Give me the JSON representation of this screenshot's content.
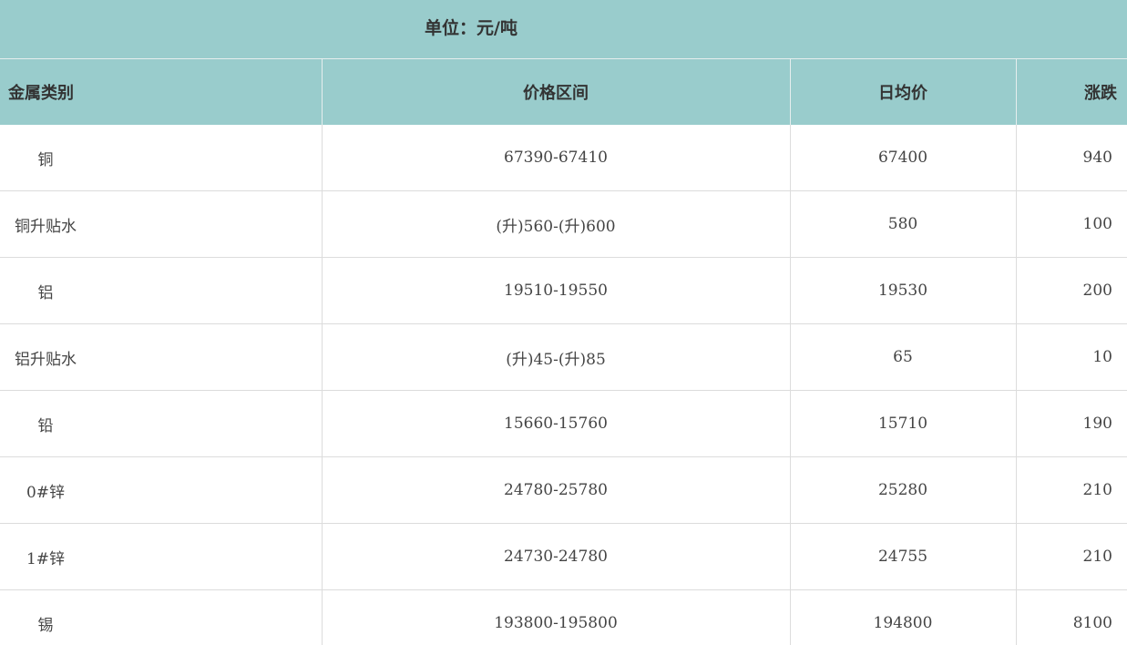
{
  "unit": "单位：元/吨",
  "table": {
    "header": [
      "金属类别",
      "价格区间",
      "日均价",
      "涨跌"
    ],
    "rows": [
      [
        "铜",
        "67390-67410",
        67400,
        940
      ],
      [
        "铜升贴水",
        "(升)560-(升)600",
        580,
        100
      ],
      [
        "铝",
        "19510-19550",
        19530,
        200
      ],
      [
        "铝升贴水",
        "(升)45-(升)85",
        65,
        10
      ],
      [
        "铅",
        "15660-15760",
        15710,
        190
      ],
      [
        "0#锌",
        "24780-25780",
        25280,
        210
      ],
      [
        "1#锌",
        "24730-24780",
        24755,
        210
      ],
      [
        "锡",
        "193800-195800",
        194800,
        8100
      ]
    ]
  }
}
